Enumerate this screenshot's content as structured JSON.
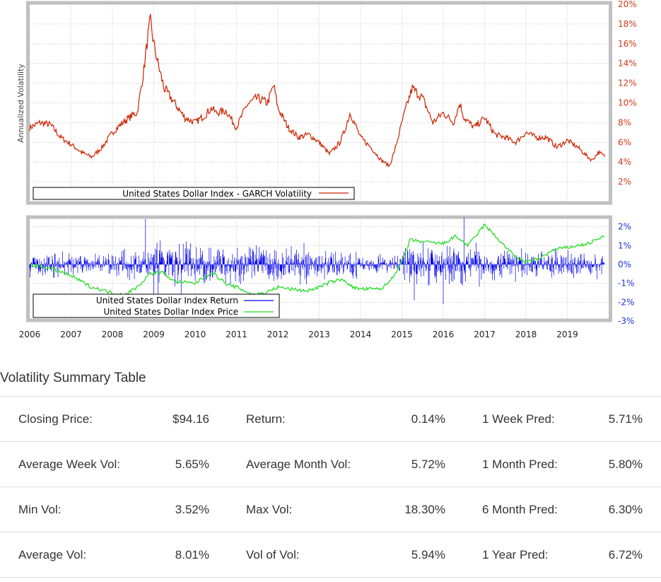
{
  "chart_data": [
    {
      "type": "line",
      "ylabel": "Annualized Volatility",
      "ylim": [
        0,
        20
      ],
      "yticks": [
        "2%",
        "4%",
        "6%",
        "8%",
        "10%",
        "12%",
        "14%",
        "16%",
        "18%",
        "20%"
      ],
      "grid": true,
      "legend_placement": "bottom-left",
      "series": [
        {
          "name": "United States Dollar Index - GARCH Volatility",
          "color": "#cc2200",
          "x": [
            2006.0,
            2006.25,
            2006.5,
            2006.75,
            2007.0,
            2007.25,
            2007.5,
            2007.75,
            2008.0,
            2008.25,
            2008.5,
            2008.6,
            2008.75,
            2008.85,
            2008.92,
            2009.0,
            2009.1,
            2009.25,
            2009.5,
            2009.75,
            2010.0,
            2010.25,
            2010.4,
            2010.5,
            2010.75,
            2011.0,
            2011.25,
            2011.5,
            2011.75,
            2011.9,
            2012.0,
            2012.25,
            2012.5,
            2012.75,
            2013.0,
            2013.25,
            2013.5,
            2013.6,
            2013.75,
            2014.0,
            2014.25,
            2014.5,
            2014.7,
            2014.85,
            2015.0,
            2015.1,
            2015.25,
            2015.5,
            2015.75,
            2016.0,
            2016.25,
            2016.4,
            2016.5,
            2016.75,
            2017.0,
            2017.25,
            2017.5,
            2017.75,
            2018.0,
            2018.25,
            2018.5,
            2018.75,
            2019.0,
            2019.25,
            2019.5,
            2019.6,
            2019.75,
            2019.9
          ],
          "y": [
            7.5,
            8.0,
            7.8,
            6.5,
            5.8,
            5.0,
            4.5,
            5.5,
            7.0,
            8.0,
            8.8,
            9.0,
            13.0,
            16.5,
            18.3,
            16.0,
            14.0,
            11.5,
            10.0,
            8.5,
            8.0,
            8.8,
            9.5,
            9.0,
            9.2,
            7.5,
            9.8,
            10.5,
            10.0,
            11.8,
            9.5,
            7.5,
            6.5,
            6.8,
            6.0,
            4.8,
            6.0,
            7.0,
            9.0,
            6.5,
            5.5,
            4.2,
            3.6,
            5.5,
            8.0,
            9.5,
            11.5,
            10.5,
            8.0,
            9.0,
            8.0,
            10.0,
            8.5,
            7.5,
            8.5,
            6.8,
            6.5,
            6.0,
            7.0,
            6.5,
            6.5,
            5.5,
            6.2,
            5.5,
            4.5,
            4.2,
            5.0,
            4.6
          ]
        }
      ]
    },
    {
      "type": "line",
      "xlim": [
        2006,
        2020
      ],
      "xticks": [
        "2006",
        "2007",
        "2008",
        "2009",
        "2010",
        "2011",
        "2012",
        "2013",
        "2014",
        "2015",
        "2016",
        "2017",
        "2018",
        "2019"
      ],
      "yticks": [
        "2%",
        "1%",
        "0%",
        "-1%",
        "-2%",
        "-3%"
      ],
      "grid": true,
      "legend_placement": "bottom-left",
      "series": [
        {
          "name": "United States Dollar Index Return",
          "color": "#0000ee",
          "type": "returns",
          "annual_volatility_profile": [
            0.5,
            0.45,
            0.6,
            1.15,
            0.85,
            0.9,
            0.75,
            0.55,
            0.4,
            0.95,
            0.85,
            0.7,
            0.6,
            0.55
          ],
          "extremes": [
            [
              2008.8,
              2.4
            ],
            [
              2009.0,
              -1.9
            ],
            [
              2009.1,
              -2.0
            ],
            [
              2015.3,
              -1.9
            ],
            [
              2016.5,
              2.5
            ],
            [
              2016.0,
              -2.1
            ]
          ]
        },
        {
          "name": "United States Dollar Index Price",
          "color": "#22dd22",
          "x": [
            2006.0,
            2006.5,
            2007.0,
            2007.5,
            2008.0,
            2008.3,
            2008.6,
            2008.9,
            2009.2,
            2009.5,
            2010.0,
            2010.4,
            2010.8,
            2011.0,
            2011.4,
            2011.7,
            2012.0,
            2012.3,
            2012.7,
            2013.0,
            2013.3,
            2013.6,
            2013.8,
            2014.0,
            2014.5,
            2014.7,
            2015.0,
            2015.2,
            2015.5,
            2016.0,
            2016.3,
            2016.6,
            2017.0,
            2017.3,
            2017.7,
            2018.0,
            2018.3,
            2018.7,
            2019.0,
            2019.5,
            2019.9
          ],
          "y": [
            0.0,
            -0.2,
            -0.6,
            -1.2,
            -1.5,
            -1.6,
            -1.2,
            -0.5,
            -0.4,
            -0.9,
            -1.0,
            -0.4,
            -1.1,
            -1.2,
            -1.6,
            -1.5,
            -1.2,
            -1.3,
            -1.4,
            -1.2,
            -0.9,
            -0.8,
            -1.2,
            -1.3,
            -1.3,
            -0.9,
            0.1,
            1.3,
            1.2,
            1.1,
            1.5,
            1.0,
            2.1,
            1.4,
            0.5,
            0.1,
            0.3,
            0.8,
            0.9,
            1.1,
            1.5
          ]
        }
      ]
    }
  ],
  "table": {
    "title": "Volatility Summary Table",
    "rows": [
      [
        {
          "label": "Closing Price:",
          "value": "$94.16"
        },
        {
          "label": "Return:",
          "value": "0.14%"
        },
        {
          "label": "1 Week Pred:",
          "value": "5.71%"
        }
      ],
      [
        {
          "label": "Average Week Vol:",
          "value": "5.65%"
        },
        {
          "label": "Average Month Vol:",
          "value": "5.72%"
        },
        {
          "label": "1 Month Pred:",
          "value": "5.80%"
        }
      ],
      [
        {
          "label": "Min Vol:",
          "value": "3.52%"
        },
        {
          "label": "Max Vol:",
          "value": "18.30%"
        },
        {
          "label": "6 Month Pred:",
          "value": "6.30%"
        }
      ],
      [
        {
          "label": "Average Vol:",
          "value": "8.01%"
        },
        {
          "label": "Vol of Vol:",
          "value": "5.94%"
        },
        {
          "label": "1 Year Pred:",
          "value": "6.72%"
        }
      ]
    ]
  }
}
